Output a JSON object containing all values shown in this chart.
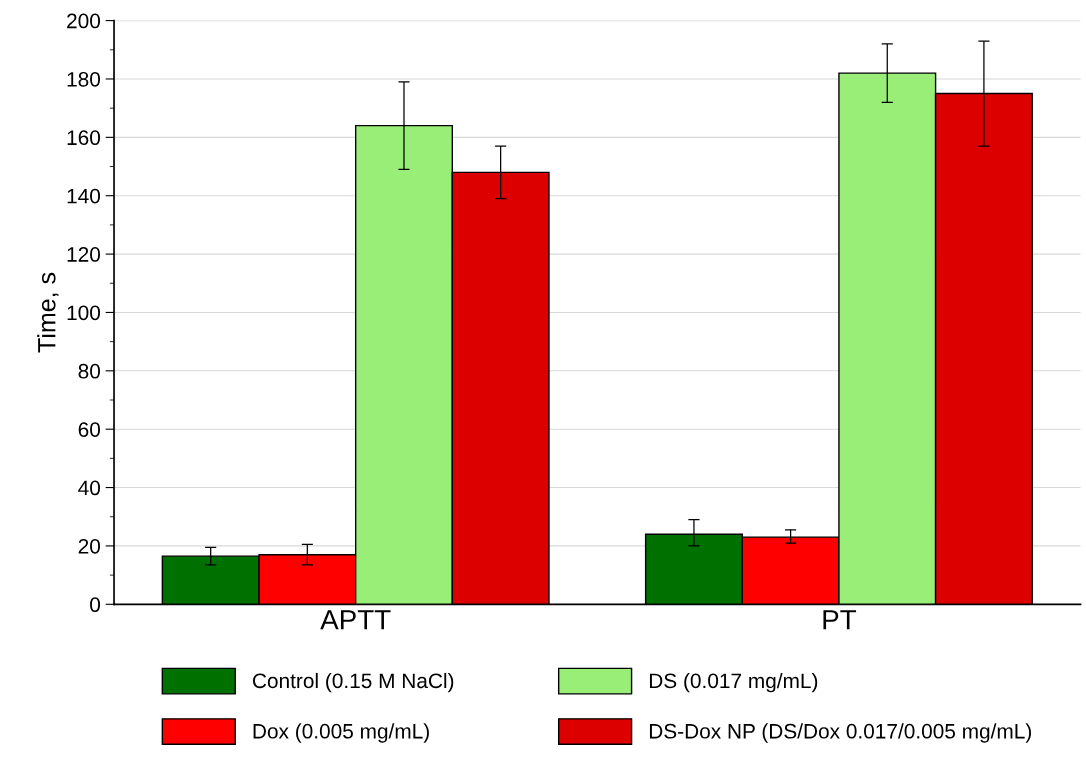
{
  "chart_data": {
    "type": "bar",
    "ylabel": "Time, s",
    "categories": [
      "APTT",
      "PT"
    ],
    "series": [
      {
        "name": "Control (0.15 M NaCl)",
        "color": "#007000",
        "values": [
          16.5,
          24
        ],
        "errors": [
          3,
          [
            20,
            29
          ]
        ]
      },
      {
        "name": "Dox (0.005 mg/mL)",
        "color": "#ff0000",
        "values": [
          17,
          23
        ],
        "errors": [
          [
            13.5,
            20.5
          ],
          [
            21,
            25.5
          ]
        ]
      },
      {
        "name": "DS (0.017 mg/mL)",
        "color": "#99ee77",
        "values": [
          164,
          182
        ],
        "errors": [
          [
            149,
            179
          ],
          [
            172,
            192
          ]
        ]
      },
      {
        "name": "DS-Dox NP (DS/Dox 0.017/0.005 mg/mL)",
        "color": "#dd0000",
        "values": [
          148,
          175
        ],
        "errors": [
          [
            139,
            157
          ],
          [
            157,
            193
          ]
        ]
      }
    ],
    "ylim": [
      0,
      200
    ],
    "yticks": [
      0,
      20,
      40,
      60,
      80,
      100,
      120,
      140,
      160,
      180,
      200
    ],
    "grid": "y",
    "legend": "bottom"
  }
}
